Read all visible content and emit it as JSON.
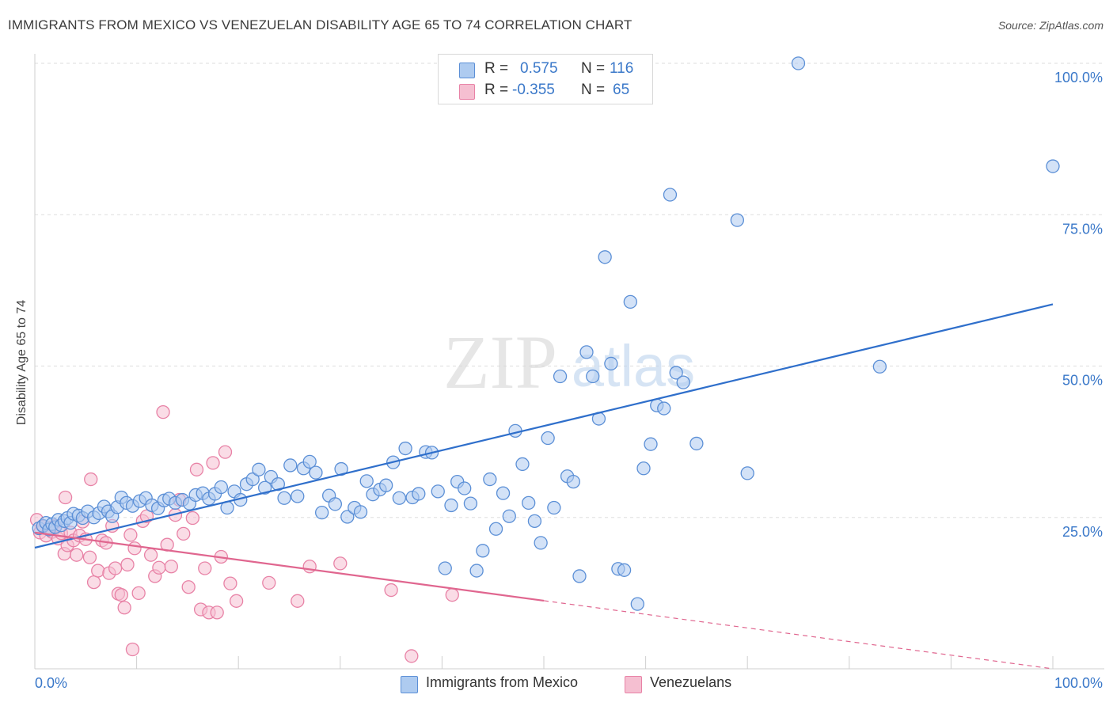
{
  "title": "IMMIGRANTS FROM MEXICO VS VENEZUELAN DISABILITY AGE 65 TO 74 CORRELATION CHART",
  "source": "Source: ZipAtlas.com",
  "watermark": {
    "zip": "ZIP",
    "atlas": "atlas"
  },
  "colors": {
    "blue": "#5b8fd6",
    "blue_fill": "#aecbf0",
    "blue_line": "#2f6fcb",
    "pink": "#e882a6",
    "pink_fill": "#f5bfd1",
    "pink_line": "#e0668f",
    "axis_value": "#3a78c9",
    "grid": "#dddddd"
  },
  "stats": {
    "r_label": "R =",
    "n_label": "N =",
    "series1": {
      "r": "0.575",
      "n": "116"
    },
    "series2": {
      "r": "-0.355",
      "n": "65"
    }
  },
  "legend": {
    "series1": "Immigrants from Mexico",
    "series2": "Venezuelans"
  },
  "chart_data": {
    "type": "scatter",
    "title": "IMMIGRANTS FROM MEXICO VS VENEZUELAN DISABILITY AGE 65 TO 74 CORRELATION CHART",
    "xlabel": "",
    "ylabel": "Disability Age 65 to 74",
    "xlim": [
      0,
      100
    ],
    "ylim": [
      0,
      100
    ],
    "x_tick_labels": [
      "0.0%",
      "100.0%"
    ],
    "y_ticks": [
      25,
      50,
      75,
      100
    ],
    "y_tick_labels": [
      "25.0%",
      "50.0%",
      "75.0%",
      "100.0%"
    ],
    "grid": true,
    "series": [
      {
        "name": "Immigrants from Mexico",
        "r": 0.575,
        "n": 116,
        "trendline": {
          "x": [
            0,
            100
          ],
          "y": [
            20.0,
            60.2
          ],
          "dashed_from": null
        },
        "points": [
          [
            0.4,
            23.2
          ],
          [
            0.8,
            23.6
          ],
          [
            1.1,
            24.1
          ],
          [
            1.4,
            23.0
          ],
          [
            1.7,
            23.9
          ],
          [
            2.0,
            23.4
          ],
          [
            2.3,
            24.6
          ],
          [
            2.6,
            23.7
          ],
          [
            2.9,
            24.4
          ],
          [
            3.2,
            24.9
          ],
          [
            3.5,
            24.1
          ],
          [
            3.8,
            25.6
          ],
          [
            4.3,
            25.3
          ],
          [
            4.7,
            24.9
          ],
          [
            5.2,
            26.0
          ],
          [
            5.8,
            25.0
          ],
          [
            6.3,
            25.7
          ],
          [
            6.8,
            26.8
          ],
          [
            7.2,
            26.0
          ],
          [
            7.6,
            25.2
          ],
          [
            8.1,
            26.7
          ],
          [
            8.5,
            28.3
          ],
          [
            9.0,
            27.4
          ],
          [
            9.6,
            26.9
          ],
          [
            10.3,
            27.7
          ],
          [
            10.9,
            28.2
          ],
          [
            11.5,
            27.0
          ],
          [
            12.1,
            26.5
          ],
          [
            12.7,
            27.8
          ],
          [
            13.2,
            28.1
          ],
          [
            13.8,
            27.4
          ],
          [
            14.5,
            27.9
          ],
          [
            15.2,
            27.3
          ],
          [
            15.8,
            28.7
          ],
          [
            16.5,
            29.0
          ],
          [
            17.1,
            28.1
          ],
          [
            17.7,
            28.9
          ],
          [
            18.3,
            30.0
          ],
          [
            18.9,
            26.6
          ],
          [
            19.6,
            29.3
          ],
          [
            20.2,
            27.9
          ],
          [
            20.8,
            30.5
          ],
          [
            21.4,
            31.3
          ],
          [
            22.0,
            32.9
          ],
          [
            22.6,
            29.9
          ],
          [
            23.2,
            31.7
          ],
          [
            23.9,
            30.5
          ],
          [
            24.5,
            28.2
          ],
          [
            25.1,
            33.6
          ],
          [
            25.8,
            28.5
          ],
          [
            26.4,
            33.1
          ],
          [
            27.0,
            34.2
          ],
          [
            27.6,
            32.4
          ],
          [
            28.2,
            25.8
          ],
          [
            28.9,
            28.6
          ],
          [
            29.5,
            27.2
          ],
          [
            30.1,
            33.0
          ],
          [
            30.7,
            25.1
          ],
          [
            31.4,
            26.6
          ],
          [
            32.0,
            25.9
          ],
          [
            32.6,
            31.0
          ],
          [
            33.2,
            28.8
          ],
          [
            33.9,
            29.6
          ],
          [
            34.5,
            30.3
          ],
          [
            35.2,
            34.1
          ],
          [
            35.8,
            28.2
          ],
          [
            36.4,
            36.4
          ],
          [
            37.1,
            28.3
          ],
          [
            37.7,
            28.9
          ],
          [
            38.4,
            35.8
          ],
          [
            39.0,
            35.7
          ],
          [
            39.6,
            29.3
          ],
          [
            40.3,
            16.6
          ],
          [
            40.9,
            27.0
          ],
          [
            41.5,
            30.9
          ],
          [
            42.2,
            29.8
          ],
          [
            42.8,
            27.3
          ],
          [
            43.4,
            16.2
          ],
          [
            44.0,
            19.5
          ],
          [
            44.7,
            31.3
          ],
          [
            45.3,
            23.1
          ],
          [
            46.0,
            29.0
          ],
          [
            46.6,
            25.2
          ],
          [
            47.2,
            39.3
          ],
          [
            47.9,
            33.8
          ],
          [
            48.5,
            27.4
          ],
          [
            49.1,
            24.4
          ],
          [
            49.7,
            20.8
          ],
          [
            50.4,
            38.1
          ],
          [
            51.0,
            26.6
          ],
          [
            51.6,
            48.3
          ],
          [
            52.3,
            31.8
          ],
          [
            52.9,
            30.9
          ],
          [
            53.5,
            15.3
          ],
          [
            54.2,
            52.3
          ],
          [
            54.8,
            48.3
          ],
          [
            55.4,
            41.3
          ],
          [
            56.0,
            68.0
          ],
          [
            56.6,
            50.4
          ],
          [
            57.3,
            16.5
          ],
          [
            57.9,
            16.3
          ],
          [
            58.5,
            60.6
          ],
          [
            59.2,
            10.7
          ],
          [
            59.8,
            33.1
          ],
          [
            60.5,
            37.1
          ],
          [
            61.1,
            43.5
          ],
          [
            61.8,
            43.0
          ],
          [
            62.4,
            78.3
          ],
          [
            63.0,
            48.9
          ],
          [
            63.7,
            47.3
          ],
          [
            65.0,
            37.2
          ],
          [
            69.0,
            74.1
          ],
          [
            70.0,
            32.3
          ],
          [
            75.0,
            100
          ],
          [
            83.0,
            49.9
          ],
          [
            100.0,
            83.0
          ]
        ]
      },
      {
        "name": "Venezuelans",
        "r": -0.355,
        "n": 65,
        "trendline": {
          "x": [
            0,
            100
          ],
          "y": [
            22.5,
            0.0
          ],
          "solid_until_x": 50
        },
        "points": [
          [
            0.2,
            24.6
          ],
          [
            0.5,
            22.5
          ],
          [
            0.8,
            23.5
          ],
          [
            1.1,
            22.0
          ],
          [
            1.4,
            23.3
          ],
          [
            1.7,
            22.6
          ],
          [
            2.0,
            23.6
          ],
          [
            2.3,
            21.5
          ],
          [
            2.6,
            22.4
          ],
          [
            2.9,
            19.0
          ],
          [
            3.2,
            20.4
          ],
          [
            3.5,
            22.5
          ],
          [
            3.8,
            21.2
          ],
          [
            4.1,
            18.8
          ],
          [
            4.4,
            22.0
          ],
          [
            4.7,
            24.3
          ],
          [
            5.0,
            21.4
          ],
          [
            5.4,
            18.4
          ],
          [
            5.8,
            14.3
          ],
          [
            6.2,
            16.2
          ],
          [
            6.6,
            21.2
          ],
          [
            7.0,
            20.8
          ],
          [
            7.3,
            15.8
          ],
          [
            7.6,
            23.6
          ],
          [
            7.9,
            16.6
          ],
          [
            8.2,
            12.4
          ],
          [
            8.5,
            12.2
          ],
          [
            8.8,
            10.1
          ],
          [
            9.1,
            17.2
          ],
          [
            9.4,
            22.1
          ],
          [
            9.8,
            19.9
          ],
          [
            10.2,
            12.5
          ],
          [
            10.6,
            24.4
          ],
          [
            11.0,
            25.2
          ],
          [
            11.4,
            18.8
          ],
          [
            11.8,
            15.3
          ],
          [
            12.2,
            16.7
          ],
          [
            12.6,
            42.4
          ],
          [
            13.0,
            20.5
          ],
          [
            13.4,
            16.9
          ],
          [
            13.8,
            25.4
          ],
          [
            14.2,
            27.9
          ],
          [
            14.6,
            22.3
          ],
          [
            15.1,
            13.5
          ],
          [
            15.5,
            24.9
          ],
          [
            15.9,
            32.9
          ],
          [
            16.3,
            9.8
          ],
          [
            16.7,
            16.6
          ],
          [
            17.1,
            9.3
          ],
          [
            17.5,
            34.0
          ],
          [
            17.9,
            9.3
          ],
          [
            18.3,
            18.5
          ],
          [
            18.7,
            35.8
          ],
          [
            19.2,
            14.1
          ],
          [
            19.8,
            11.2
          ],
          [
            3.0,
            28.3
          ],
          [
            5.5,
            31.3
          ],
          [
            9.6,
            3.2
          ],
          [
            23.0,
            14.2
          ],
          [
            25.8,
            11.2
          ],
          [
            27.0,
            16.9
          ],
          [
            30.0,
            17.4
          ],
          [
            35.0,
            13.0
          ],
          [
            37.0,
            2.1
          ],
          [
            41.0,
            12.2
          ]
        ]
      }
    ]
  }
}
